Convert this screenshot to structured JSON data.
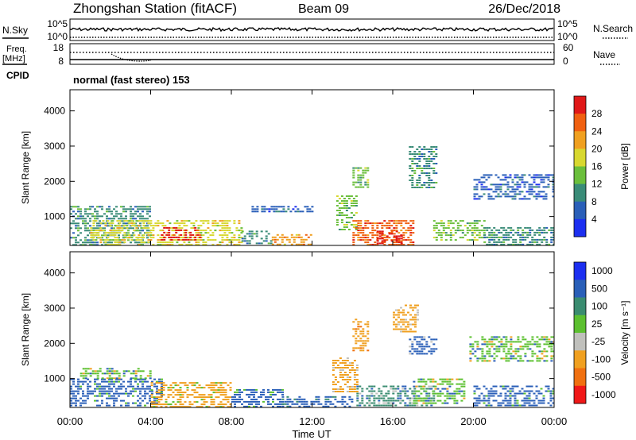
{
  "header": {
    "station": "Zhongshan Station (fitACF)",
    "beam": "Beam 09",
    "date": "26/Dec/2018"
  },
  "strips": {
    "nsky_label": "N.Sky",
    "nsky_ticks": [
      "10^5",
      "10^0"
    ],
    "nsearch_label": "N.Search",
    "nsearch_ticks": [
      "10^5",
      "10^0"
    ],
    "freq_label_line1": "Freq.",
    "freq_label_line2": "[MHz]",
    "freq_ticks": [
      "18",
      "8"
    ],
    "nave_label": "Nave",
    "nave_ticks": [
      "60",
      "0"
    ],
    "cpid_label": "CPID",
    "cpid_text": "normal (fast stereo) 153"
  },
  "chart_data": [
    {
      "type": "heatmap",
      "panel": "power",
      "xlabel": "",
      "ylabel": "Slant Range [km]",
      "x_ticks": [
        "00:00",
        "04:00",
        "08:00",
        "12:00",
        "16:00",
        "20:00",
        "00:00"
      ],
      "y_ticks": [
        1000,
        2000,
        3000,
        4000
      ],
      "x_range_hours": [
        0,
        24
      ],
      "y_range_km": [
        180,
        4600
      ],
      "colorbar": {
        "label": "Power [dB]",
        "tick_labels": [
          "4",
          "8",
          "12",
          "16",
          "20",
          "24",
          "28"
        ],
        "colors": [
          "#1c2ff0",
          "#2a5fb8",
          "#3a8c78",
          "#6bbf3c",
          "#d8d830",
          "#f0a020",
          "#f06010",
          "#e01818"
        ],
        "range": [
          0,
          30
        ]
      },
      "regions": [
        {
          "t0": 0.0,
          "t1": 4.0,
          "r0": 200,
          "r1": 1300,
          "value": 9
        },
        {
          "t0": 1.0,
          "t1": 8.5,
          "r0": 200,
          "r1": 900,
          "value": 18
        },
        {
          "t0": 4.5,
          "t1": 6.5,
          "r0": 300,
          "r1": 700,
          "value": 27
        },
        {
          "t0": 8.5,
          "t1": 10.0,
          "r0": 250,
          "r1": 600,
          "value": 10
        },
        {
          "t0": 9.0,
          "t1": 12.0,
          "r0": 1100,
          "r1": 1300,
          "value": 6
        },
        {
          "t0": 10.0,
          "t1": 12.0,
          "r0": 200,
          "r1": 500,
          "value": 22
        },
        {
          "t0": 13.2,
          "t1": 14.2,
          "r0": 600,
          "r1": 1600,
          "value": 14
        },
        {
          "t0": 14.0,
          "t1": 17.0,
          "r0": 200,
          "r1": 900,
          "value": 24
        },
        {
          "t0": 15.2,
          "t1": 16.4,
          "r0": 200,
          "r1": 600,
          "value": 29
        },
        {
          "t0": 14.0,
          "t1": 14.8,
          "r0": 1800,
          "r1": 2400,
          "value": 12
        },
        {
          "t0": 16.8,
          "t1": 18.2,
          "r0": 1800,
          "r1": 3000,
          "value": 8
        },
        {
          "t0": 18.0,
          "t1": 20.5,
          "r0": 300,
          "r1": 900,
          "value": 14
        },
        {
          "t0": 20.0,
          "t1": 24.0,
          "r0": 1500,
          "r1": 2200,
          "value": 7
        },
        {
          "t0": 20.5,
          "t1": 24.0,
          "r0": 200,
          "r1": 700,
          "value": 9
        }
      ]
    },
    {
      "type": "heatmap",
      "panel": "velocity",
      "xlabel": "Time UT",
      "ylabel": "Slant Range [km]",
      "x_ticks": [
        "00:00",
        "04:00",
        "08:00",
        "12:00",
        "16:00",
        "20:00",
        "00:00"
      ],
      "y_ticks": [
        1000,
        2000,
        3000,
        4000
      ],
      "x_range_hours": [
        0,
        24
      ],
      "y_range_km": [
        180,
        4600
      ],
      "colorbar": {
        "label": "Velocity [m s⁻¹]",
        "tick_labels": [
          "1000",
          "500",
          "100",
          "25",
          "-25",
          "-100",
          "-500",
          "-1000"
        ],
        "colors": [
          "#1c2ff0",
          "#2a5fb8",
          "#3a8c70",
          "#5cc030",
          "#c0c0bc",
          "#f0a020",
          "#f07010",
          "#f01818"
        ],
        "range": [
          -1000,
          1000
        ]
      },
      "regions": [
        {
          "t0": 0.0,
          "t1": 4.5,
          "r0": 200,
          "r1": 1000,
          "value": 150
        },
        {
          "t0": 0.5,
          "t1": 4.0,
          "r0": 1000,
          "r1": 1300,
          "value": 0
        },
        {
          "t0": 4.0,
          "t1": 8.0,
          "r0": 200,
          "r1": 900,
          "value": -200
        },
        {
          "t0": 8.0,
          "t1": 10.5,
          "r0": 200,
          "r1": 700,
          "value": 150
        },
        {
          "t0": 10.5,
          "t1": 14.0,
          "r0": 200,
          "r1": 500,
          "value": 200
        },
        {
          "t0": 13.0,
          "t1": 14.2,
          "r0": 600,
          "r1": 1600,
          "value": -300
        },
        {
          "t0": 14.0,
          "t1": 14.8,
          "r0": 1800,
          "r1": 2700,
          "value": -400
        },
        {
          "t0": 14.2,
          "t1": 18.0,
          "r0": 200,
          "r1": 800,
          "value": 80
        },
        {
          "t0": 16.0,
          "t1": 17.2,
          "r0": 2300,
          "r1": 3100,
          "value": -300
        },
        {
          "t0": 16.8,
          "t1": 18.2,
          "r0": 1700,
          "r1": 2200,
          "value": 120
        },
        {
          "t0": 17.0,
          "t1": 19.5,
          "r0": 300,
          "r1": 1000,
          "value": 0
        },
        {
          "t0": 19.8,
          "t1": 24.0,
          "r0": 1500,
          "r1": 2200,
          "value": 0
        },
        {
          "t0": 20.0,
          "t1": 24.0,
          "r0": 200,
          "r1": 800,
          "value": 150
        }
      ]
    }
  ]
}
